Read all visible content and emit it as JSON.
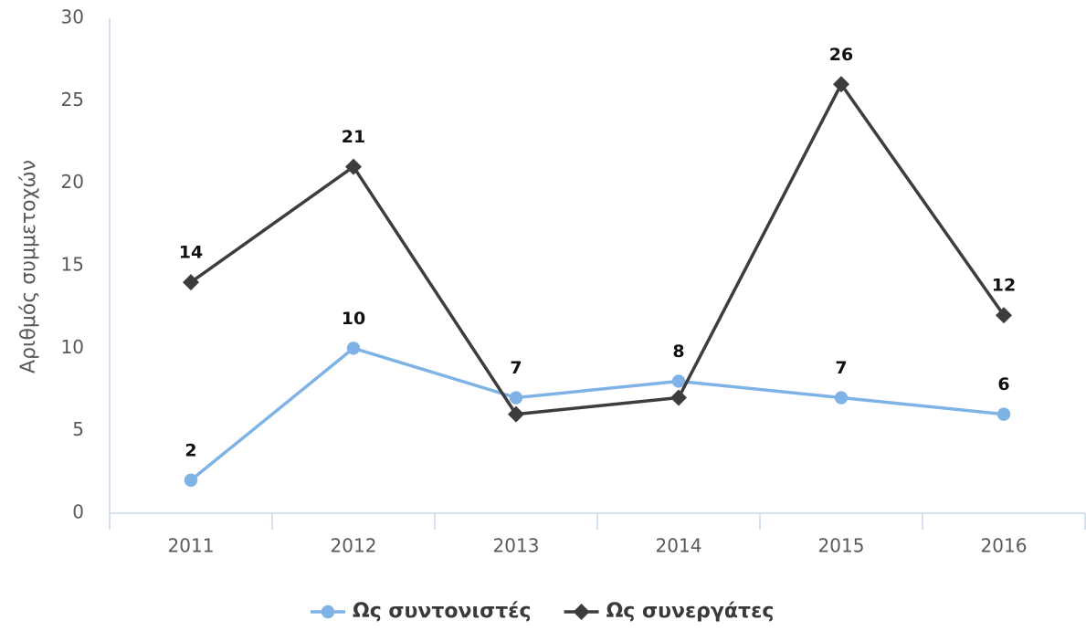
{
  "chart_data": {
    "type": "line",
    "y_label": "Αριθμός συμμετοχών",
    "categories": [
      "2011",
      "2012",
      "2013",
      "2014",
      "2015",
      "2016"
    ],
    "series": [
      {
        "name": "Ως συντονιστές",
        "color": "#7fb3e6",
        "marker": "circle",
        "values": [
          2,
          10,
          7,
          8,
          7,
          6
        ]
      },
      {
        "name": "Ως συνεργάτες",
        "color": "#3d3d3d",
        "marker": "diamond",
        "values": [
          14,
          21,
          6,
          7,
          26,
          12
        ],
        "value_labels": [
          "14",
          "21",
          null,
          null,
          "26",
          "12"
        ]
      }
    ],
    "ylim": [
      0,
      30
    ],
    "yticks": [
      0,
      5,
      10,
      15,
      20,
      25,
      30
    ],
    "grid": false,
    "legend": "bottom"
  }
}
